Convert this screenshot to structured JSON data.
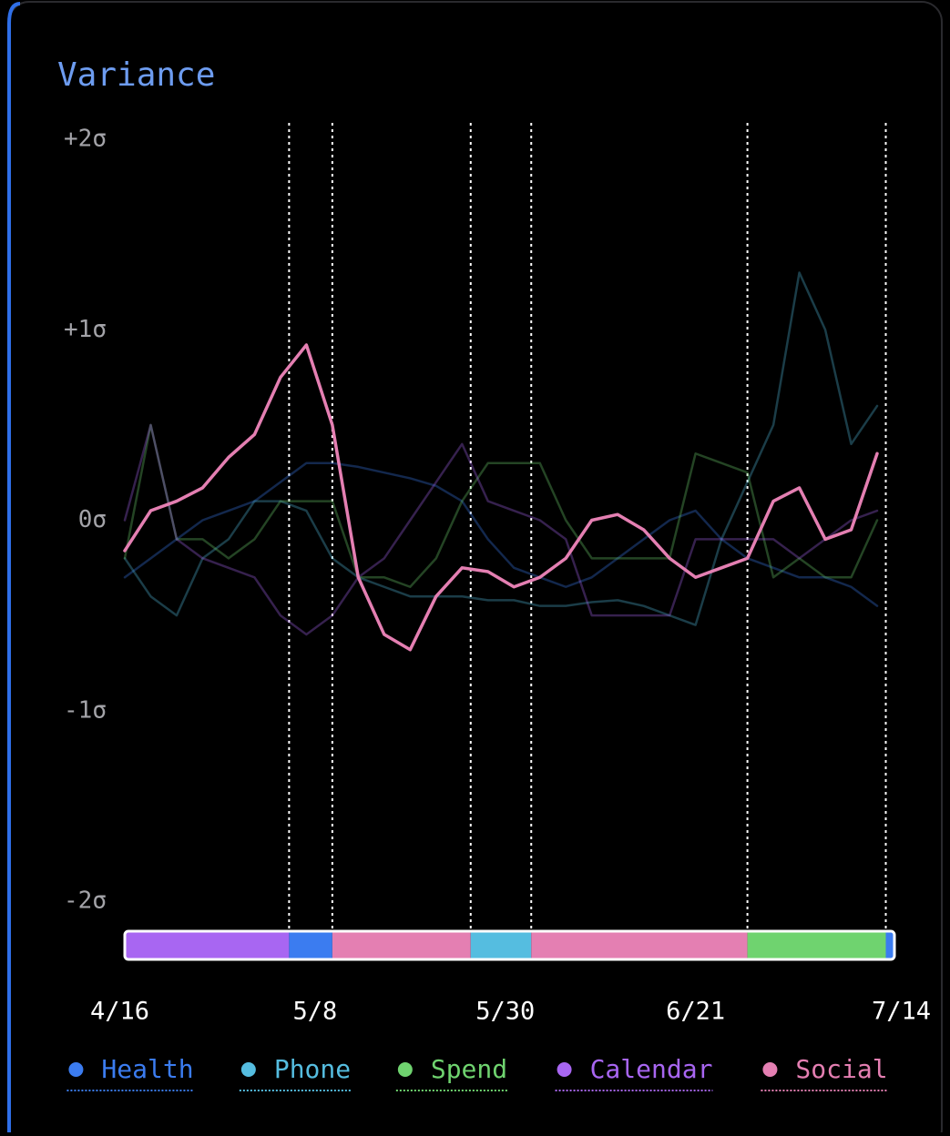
{
  "chart_data": {
    "type": "line",
    "title": "Variance",
    "x": [
      0,
      3,
      6,
      9,
      12,
      15,
      18,
      21,
      24,
      27,
      30,
      33,
      36,
      39,
      42,
      45,
      48,
      51,
      54,
      57,
      60,
      63,
      66,
      69,
      72,
      75,
      78,
      81,
      84,
      87
    ],
    "xlim": [
      0,
      89
    ],
    "xticks": [
      {
        "value": 0,
        "label": "4/16"
      },
      {
        "value": 22,
        "label": "5/8"
      },
      {
        "value": 44,
        "label": "5/30"
      },
      {
        "value": 66,
        "label": "6/21"
      },
      {
        "value": 89,
        "label": "7/14"
      }
    ],
    "ylim": [
      -2,
      2
    ],
    "yticks": [
      {
        "value": 2,
        "label": "+2σ"
      },
      {
        "value": 1,
        "label": "+1σ"
      },
      {
        "value": 0,
        "label": "0σ"
      },
      {
        "value": -1,
        "label": "-1σ"
      },
      {
        "value": -2,
        "label": "-2σ"
      }
    ],
    "highlight": "Social",
    "series": [
      {
        "name": "Health",
        "color": "#3b7cf0",
        "values": [
          -0.3,
          -0.2,
          -0.1,
          0,
          0.05,
          0.1,
          0.2,
          0.3,
          0.3,
          0.28,
          0.25,
          0.22,
          0.18,
          0.1,
          -0.1,
          -0.25,
          -0.3,
          -0.35,
          -0.3,
          -0.2,
          -0.1,
          0,
          0.05,
          -0.1,
          -0.2,
          -0.25,
          -0.3,
          -0.3,
          -0.35,
          -0.45
        ]
      },
      {
        "name": "Phone",
        "color": "#55bde0",
        "values": [
          -0.2,
          -0.4,
          -0.5,
          -0.2,
          -0.1,
          0.1,
          0.1,
          0.05,
          -0.2,
          -0.3,
          -0.35,
          -0.4,
          -0.4,
          -0.4,
          -0.42,
          -0.42,
          -0.45,
          -0.45,
          -0.43,
          -0.42,
          -0.45,
          -0.5,
          -0.55,
          -0.1,
          0.2,
          0.5,
          1.3,
          1.0,
          0.4,
          0.6
        ]
      },
      {
        "name": "Spend",
        "color": "#6fd36f",
        "values": [
          -0.2,
          0.5,
          -0.1,
          -0.1,
          -0.2,
          -0.1,
          0.1,
          0.1,
          0.1,
          -0.3,
          -0.3,
          -0.35,
          -0.2,
          0.1,
          0.3,
          0.3,
          0.3,
          0,
          -0.2,
          -0.2,
          -0.2,
          -0.2,
          0.35,
          0.3,
          0.25,
          -0.3,
          -0.2,
          -0.3,
          -0.3,
          0
        ]
      },
      {
        "name": "Calendar",
        "color": "#a866f2",
        "values": [
          0,
          0.5,
          -0.1,
          -0.2,
          -0.25,
          -0.3,
          -0.5,
          -0.6,
          -0.5,
          -0.3,
          -0.2,
          0,
          0.2,
          0.4,
          0.1,
          0.05,
          0,
          -0.1,
          -0.5,
          -0.5,
          -0.5,
          -0.5,
          -0.1,
          -0.1,
          -0.1,
          -0.1,
          -0.2,
          -0.1,
          0,
          0.05
        ]
      },
      {
        "name": "Social",
        "color": "#e47fb2",
        "values": [
          -0.16,
          0.05,
          0.1,
          0.17,
          0.33,
          0.45,
          0.75,
          0.92,
          0.5,
          -0.3,
          -0.6,
          -0.68,
          -0.4,
          -0.25,
          -0.27,
          -0.35,
          -0.3,
          -0.2,
          0,
          0.03,
          -0.05,
          -0.2,
          -0.3,
          -0.25,
          -0.2,
          0.1,
          0.17,
          -0.1,
          -0.05,
          0.35
        ]
      }
    ],
    "segments": [
      {
        "series": "Calendar",
        "start": 0,
        "end": 19
      },
      {
        "series": "Health",
        "start": 19,
        "end": 24
      },
      {
        "series": "Social",
        "start": 24,
        "end": 40
      },
      {
        "series": "Phone",
        "start": 40,
        "end": 47
      },
      {
        "series": "Social",
        "start": 47,
        "end": 72
      },
      {
        "series": "Spend",
        "start": 72,
        "end": 88
      },
      {
        "series": "Health",
        "start": 88,
        "end": 89
      }
    ]
  }
}
